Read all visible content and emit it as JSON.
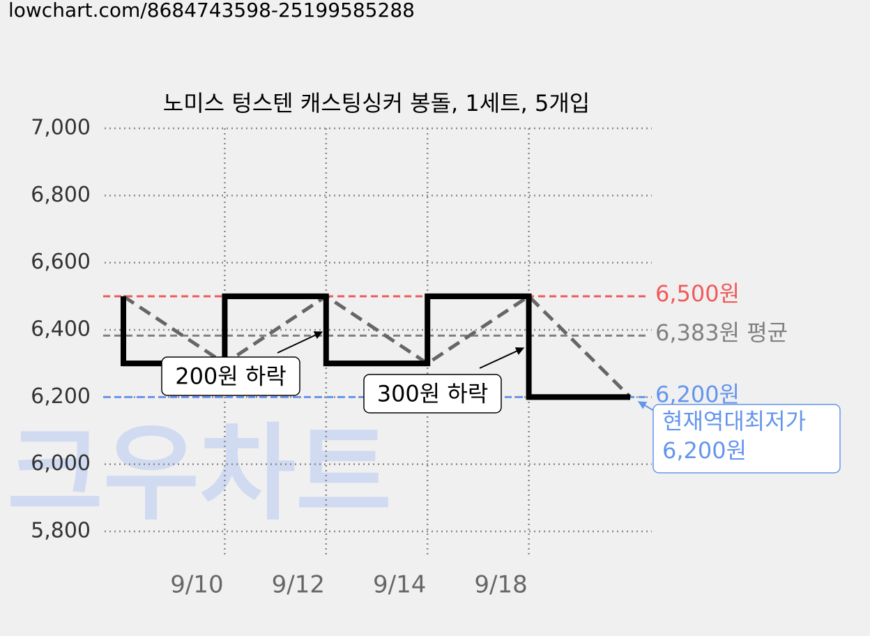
{
  "url": "lowchart.com/8684743598-25199585288",
  "chart_data": {
    "type": "step-line",
    "title": "노미스 텅스텐 캐스팅싱커 봉돌, 1세트, 5개입",
    "categories": [
      null,
      "9/10",
      "9/12",
      "9/14",
      "9/18",
      null
    ],
    "values": [
      6500,
      6300,
      6500,
      6300,
      6500,
      6200
    ],
    "color": "#000000",
    "trend_color": "#666666",
    "ylim": [
      5800,
      7000
    ],
    "yticks": [
      {
        "value": 5800,
        "label": "5,800"
      },
      {
        "value": 6000,
        "label": "6,000"
      },
      {
        "value": 6200,
        "label": "6,200"
      },
      {
        "value": 6400,
        "label": "6,400"
      },
      {
        "value": 6600,
        "label": "6,600"
      },
      {
        "value": 6800,
        "label": "6,800"
      },
      {
        "value": 7000,
        "label": "7,000"
      }
    ],
    "grid": true,
    "reference_lines": [
      {
        "value": 6500,
        "label": "6,500원",
        "color": "#f05a5a"
      },
      {
        "value": 6383,
        "label": "6,383원 평균",
        "color": "#808080"
      },
      {
        "value": 6200,
        "label": "6,200원",
        "color": "#6495ed"
      }
    ],
    "annotations": [
      "200원 하락",
      "300원 하락"
    ],
    "callout": [
      "현재역대최저가",
      "6,200원"
    ],
    "watermark": "크우차트"
  }
}
